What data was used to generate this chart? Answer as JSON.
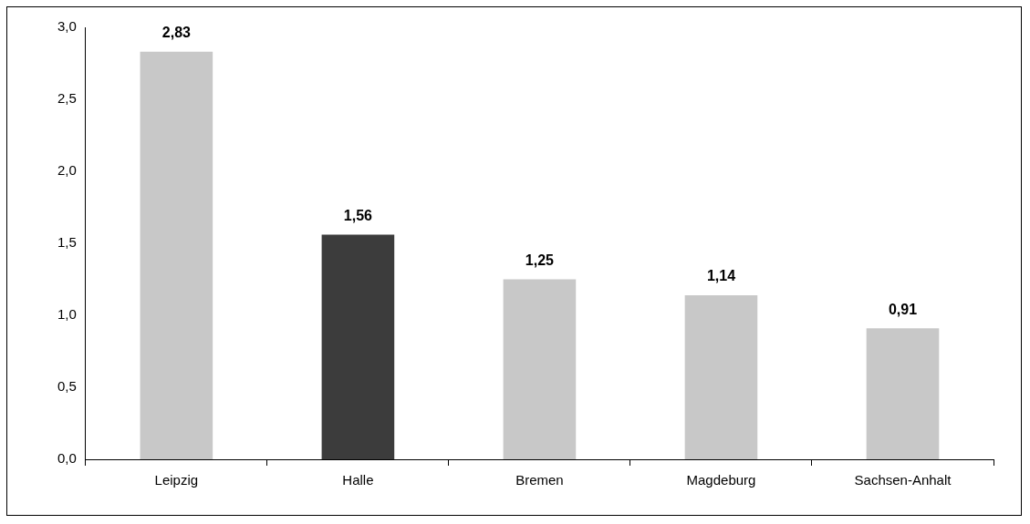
{
  "chart_data": {
    "type": "bar",
    "categories": [
      "Leipzig",
      "Halle",
      "Bremen",
      "Magdeburg",
      "Sachsen-Anhalt"
    ],
    "values": [
      2.83,
      1.56,
      1.25,
      1.14,
      0.91
    ],
    "colors": [
      "#c8c8c8",
      "#3c3c3c",
      "#c8c8c8",
      "#c8c8c8",
      "#c8c8c8"
    ],
    "value_labels": [
      "2,83",
      "1,56",
      "1,25",
      "1,14",
      "0,91"
    ],
    "ylim": [
      0,
      3
    ],
    "yticks": [
      {
        "value": 0,
        "label": "0,0"
      },
      {
        "value": 0.5,
        "label": "0,5"
      },
      {
        "value": 1,
        "label": "1,0"
      },
      {
        "value": 1.5,
        "label": "1,5"
      },
      {
        "value": 2,
        "label": "2,0"
      },
      {
        "value": 2.5,
        "label": "2,5"
      },
      {
        "value": 3,
        "label": "3,0"
      }
    ],
    "grid": false,
    "legend": false
  }
}
